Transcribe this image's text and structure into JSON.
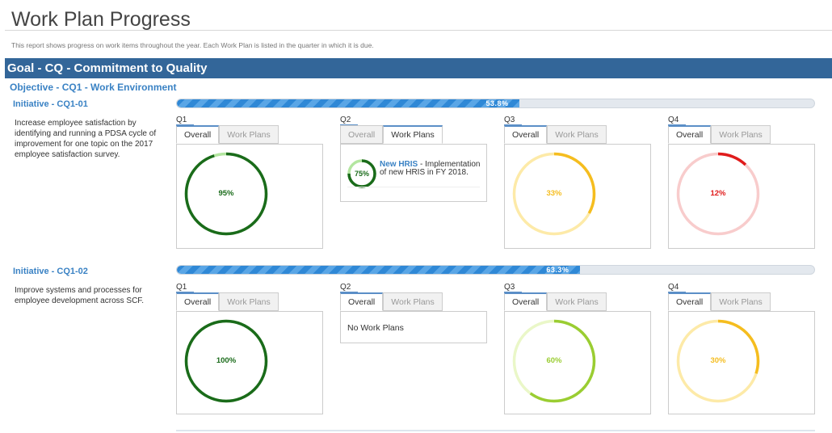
{
  "page": {
    "title": "Work Plan Progress",
    "subtitle": "This report shows progress on work items throughout the year. Each Work Plan is listed in the quarter in which it is due."
  },
  "goal": {
    "label": "Goal - CQ - Commitment to Quality"
  },
  "objective": {
    "label": "Objective - CQ1 - Work Environment"
  },
  "tab_labels": {
    "overall": "Overall",
    "work_plans": "Work Plans"
  },
  "colors": {
    "dark_green": "#1a6b1a",
    "light_green": "#b3e6a0",
    "yellow_green": "#9acd32",
    "pale_yellow_green": "#eaf7c8",
    "amber": "#f5bd1f",
    "pale_amber": "#fdeaa8",
    "red": "#e01b1b",
    "pale_red": "#f8cccc"
  },
  "initiatives": [
    {
      "title": "Initiative - CQ1-01",
      "description": "Increase employee satisfaction by identifying and running a PDSA cycle of improvement for one topic on the 2017 employee satisfaction survey.",
      "progress": {
        "value": 53.8,
        "label": "53.8%"
      },
      "quarters": [
        {
          "label": "Q1",
          "active_tab": "overall",
          "percent": 95,
          "percent_label": "95%",
          "color": "#1a6b1a",
          "track": "#b3e6a0"
        },
        {
          "label": "Q2",
          "active_tab": "work_plans",
          "work_plan": {
            "name": "New HRIS",
            "sep": " - ",
            "desc": "Implementation of new HRIS in FY 2018.",
            "percent": 75,
            "percent_label": "75%",
            "color": "#1a6b1a",
            "track": "#b3e6a0"
          }
        },
        {
          "label": "Q3",
          "active_tab": "overall",
          "percent": 33,
          "percent_label": "33%",
          "color": "#f5bd1f",
          "track": "#fdeaa8"
        },
        {
          "label": "Q4",
          "active_tab": "overall",
          "percent": 12,
          "percent_label": "12%",
          "color": "#e01b1b",
          "track": "#f8cccc"
        }
      ]
    },
    {
      "title": "Initiative - CQ1-02",
      "description": "Improve systems and processes for employee development across SCF.",
      "progress": {
        "value": 63.3,
        "label": "63.3%"
      },
      "quarters": [
        {
          "label": "Q1",
          "active_tab": "overall",
          "percent": 100,
          "percent_label": "100%",
          "color": "#1a6b1a",
          "track": "#b3e6a0"
        },
        {
          "label": "Q2",
          "active_tab": "overall",
          "no_work_plans": "No Work Plans"
        },
        {
          "label": "Q3",
          "active_tab": "overall",
          "percent": 60,
          "percent_label": "60%",
          "color": "#9acd32",
          "track": "#eaf7c8"
        },
        {
          "label": "Q4",
          "active_tab": "overall",
          "percent": 30,
          "percent_label": "30%",
          "color": "#f5bd1f",
          "track": "#fdeaa8"
        }
      ]
    }
  ]
}
